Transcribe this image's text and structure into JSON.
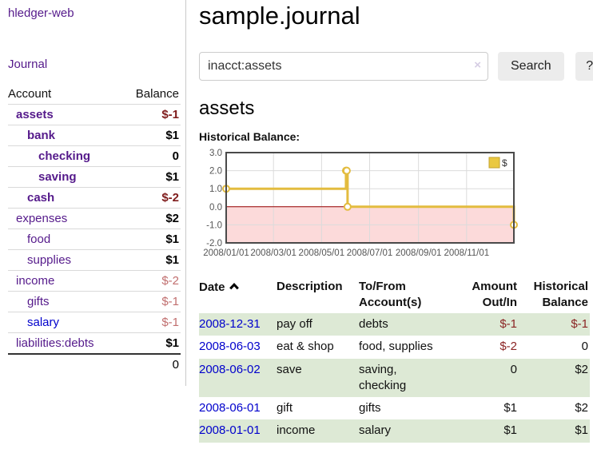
{
  "sidebar": {
    "title": "hledger-web",
    "nav": {
      "journal": "Journal"
    },
    "table": {
      "account_header": "Account",
      "balance_header": "Balance",
      "rows": [
        {
          "name": "assets",
          "balance": "$-1"
        },
        {
          "name": "bank",
          "balance": "$1"
        },
        {
          "name": "checking",
          "balance": "0"
        },
        {
          "name": "saving",
          "balance": "$1"
        },
        {
          "name": "cash",
          "balance": "$-2"
        },
        {
          "name": "expenses",
          "balance": "$2"
        },
        {
          "name": "food",
          "balance": "$1"
        },
        {
          "name": "supplies",
          "balance": "$1"
        },
        {
          "name": "income",
          "balance": "$-2"
        },
        {
          "name": "gifts",
          "balance": "$-1"
        },
        {
          "name": "salary",
          "balance": "$-1"
        },
        {
          "name": "liabilities:debts",
          "balance": "$1"
        }
      ],
      "total": "0"
    }
  },
  "main": {
    "title": "sample.journal",
    "search": {
      "value": "inacct:assets",
      "clear_icon": "×",
      "button_label": "Search",
      "help_label": "?"
    },
    "account_heading": "assets"
  },
  "chart_data": {
    "type": "line",
    "step": true,
    "title": "Historical Balance:",
    "xlim": [
      "2008-01-01",
      "2008-12-31"
    ],
    "ylim": [
      -2,
      3
    ],
    "yticks": [
      {
        "v": 3,
        "label": "3.0"
      },
      {
        "v": 2,
        "label": "2.0"
      },
      {
        "v": 1,
        "label": "1.0"
      },
      {
        "v": 0,
        "label": "0.0"
      },
      {
        "v": -1,
        "label": "-1.0"
      },
      {
        "v": -2,
        "label": "-2.0"
      }
    ],
    "xticks": [
      {
        "d": "2008-01-01",
        "label": "2008/01/01"
      },
      {
        "d": "2008-03-01",
        "label": "2008/03/01"
      },
      {
        "d": "2008-05-01",
        "label": "2008/05/01"
      },
      {
        "d": "2008-07-01",
        "label": "2008/07/01"
      },
      {
        "d": "2008-09-01",
        "label": "2008/09/01"
      },
      {
        "d": "2008-11-01",
        "label": "2008/11/01"
      }
    ],
    "series": [
      {
        "name": "$",
        "color": "#e3bc3f",
        "points": [
          {
            "d": "2008-01-01",
            "v": 1
          },
          {
            "d": "2008-06-01",
            "v": 2
          },
          {
            "d": "2008-06-02",
            "v": 2
          },
          {
            "d": "2008-06-03",
            "v": 0
          },
          {
            "d": "2008-12-31",
            "v": -1
          }
        ]
      }
    ],
    "negative_fill": "#fcdada",
    "zero_line_color": "#990000",
    "grid": true,
    "legend_position": "top-right"
  },
  "register": {
    "headers": {
      "date": "Date",
      "description": "Description",
      "accounts": "To/From Account(s)",
      "amount": "Amount Out/In",
      "balance": "Historical Balance"
    },
    "rows": [
      {
        "date": "2008-12-31",
        "description": "pay off",
        "accounts": "debts",
        "amount": "$-1",
        "balance": "$-1"
      },
      {
        "date": "2008-06-03",
        "description": "eat & shop",
        "accounts": "food, supplies",
        "amount": "$-2",
        "balance": "0"
      },
      {
        "date": "2008-06-02",
        "description": "save",
        "accounts": "saving,\nchecking",
        "amount": "0",
        "balance": "$2"
      },
      {
        "date": "2008-06-01",
        "description": "gift",
        "accounts": "gifts",
        "amount": "$1",
        "balance": "$2"
      },
      {
        "date": "2008-01-01",
        "description": "income",
        "accounts": "salary",
        "amount": "$1",
        "balance": "$1"
      }
    ]
  }
}
